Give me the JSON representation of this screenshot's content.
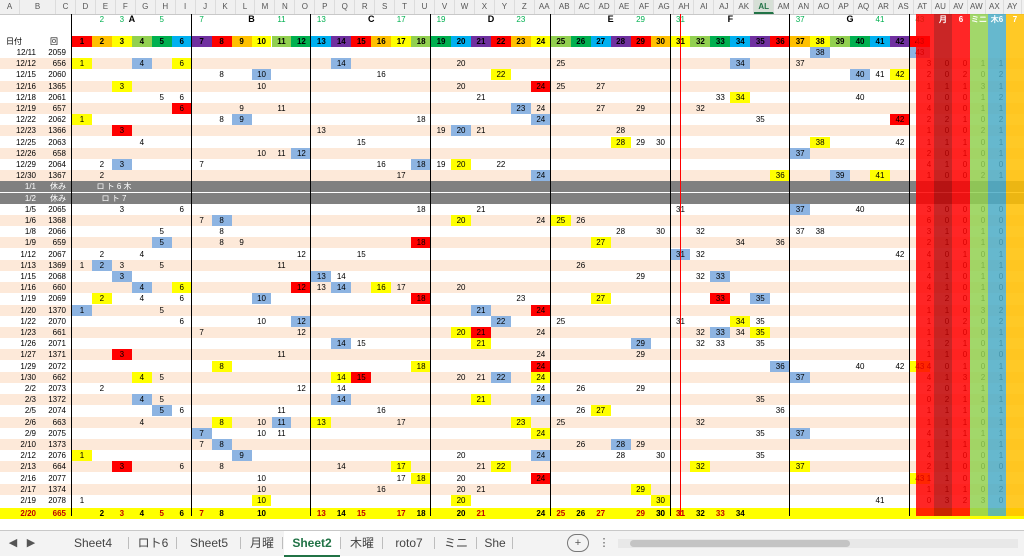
{
  "columns": [
    "A",
    "B",
    "C",
    "D",
    "E",
    "F",
    "G",
    "H",
    "I",
    "J",
    "K",
    "L",
    "M",
    "N",
    "O",
    "P",
    "Q",
    "R",
    "S",
    "T",
    "U",
    "V",
    "W",
    "X",
    "Y",
    "Z",
    "AA",
    "AB",
    "AC",
    "AD",
    "AE",
    "AF",
    "AG",
    "AH",
    "AI",
    "AJ",
    "AK",
    "AL",
    "AM",
    "AN",
    "AO",
    "AP",
    "AQ",
    "AR",
    "AS",
    "AT",
    "AU",
    "AV",
    "AW",
    "AX",
    "AY"
  ],
  "selected_column": "AL",
  "groups": [
    "A",
    "B",
    "C",
    "D",
    "E",
    "F",
    "G"
  ],
  "header": {
    "date_label": "日付",
    "round_label": "回",
    "nums": [
      "1",
      "2",
      "3",
      "4",
      "5",
      "6",
      "7",
      "8",
      "9",
      "10",
      "11",
      "12",
      "13",
      "14",
      "15",
      "16",
      "17",
      "18",
      "19",
      "20",
      "21",
      "22",
      "23",
      "24",
      "25",
      "26",
      "27",
      "28",
      "29",
      "30",
      "31",
      "32",
      "33",
      "34",
      "35",
      "36",
      "37",
      "38",
      "39",
      "40",
      "41",
      "42",
      "43"
    ],
    "upper": {
      "2": "2",
      "3": "3",
      "5": "5",
      "7": "7",
      "11": "11",
      "13": "13",
      "17": "17",
      "19": "19",
      "23": "23",
      "29": "29",
      "31": "31",
      "37": "37",
      "41": "41",
      "43": "43"
    },
    "side_labels": [
      "月",
      "6",
      "ミニ",
      "木6",
      "7"
    ]
  },
  "rows": [
    {
      "d": "12/11",
      "n": "2059",
      "v": {
        "38": "38",
        "43": "43"
      }
    },
    {
      "d": "12/12",
      "n": "656",
      "v": {
        "1": "1",
        "4": "4",
        "6": "6",
        "14": "14",
        "20": "20",
        "25": "25",
        "34": "34",
        "37": "37"
      },
      "s": [
        "3",
        "0",
        "0",
        "1",
        "1"
      ]
    },
    {
      "d": "12/15",
      "n": "2060",
      "v": {
        "8": "8",
        "10": "10",
        "16": "16",
        "22": "22",
        "40": "40",
        "41": "41",
        "42": "42"
      },
      "s": [
        "2",
        "0",
        "2",
        "0",
        "2"
      ]
    },
    {
      "d": "12/16",
      "n": "1365",
      "v": {
        "3": "3",
        "10": "10",
        "20": "20",
        "24": "24",
        "25": "25",
        "27": "27"
      },
      "s": [
        "1",
        "1",
        "1",
        "3",
        "1"
      ]
    },
    {
      "d": "12/18",
      "n": "2061",
      "v": {
        "5": "5",
        "6": "6",
        "21": "21",
        "33": "33",
        "34": "34",
        "40": "40"
      },
      "s": [
        "0",
        "0",
        "0",
        "1",
        "2"
      ]
    },
    {
      "d": "12/19",
      "n": "657",
      "v": {
        "6": "6",
        "9": "9",
        "11": "11",
        "23": "23",
        "24": "24",
        "27": "27",
        "29": "29",
        "32": "32"
      },
      "s": [
        "4",
        "0",
        "0",
        "1",
        "1"
      ]
    },
    {
      "d": "12/22",
      "n": "2062",
      "v": {
        "1": "1",
        "8": "8",
        "9": "9",
        "18": "18",
        "24": "24",
        "35": "35",
        "42": "42"
      },
      "s": [
        "2",
        "2",
        "1",
        "0",
        "2"
      ]
    },
    {
      "d": "12/23",
      "n": "1366",
      "v": {
        "3": "3",
        "13": "13",
        "19": "19",
        "20": "20",
        "21": "21",
        "28": "28"
      },
      "s": [
        "1",
        "0",
        "0",
        "2",
        "1"
      ]
    },
    {
      "d": "12/25",
      "n": "2063",
      "v": {
        "4": "4",
        "15": "15",
        "28": "28",
        "29": "29",
        "30": "30",
        "38": "38",
        "42": "42"
      },
      "s": [
        "1",
        "1",
        "1",
        "0",
        "1"
      ]
    },
    {
      "d": "12/26",
      "n": "658",
      "v": {
        "10": "10",
        "11": "11",
        "12": "12",
        "37": "37"
      },
      "s": [
        "2",
        "0",
        "1",
        "0",
        "1"
      ]
    },
    {
      "d": "12/29",
      "n": "2064",
      "v": {
        "2": "2",
        "3": "3",
        "7": "7",
        "16": "16",
        "18": "18",
        "19": "19",
        "20": "20",
        "22": "22"
      },
      "s": [
        "4",
        "1",
        "0",
        "0",
        "0"
      ]
    },
    {
      "d": "12/30",
      "n": "1367",
      "v": {
        "2": "2",
        "17": "17",
        "24": "24",
        "36": "36",
        "39": "39",
        "41": "41"
      },
      "s": [
        "1",
        "0",
        "0",
        "2",
        "1"
      ]
    },
    {
      "d": "1/1",
      "n": "休み",
      "note": "ロ ト 6 木",
      "gray": true
    },
    {
      "d": "1/2",
      "n": "休み",
      "note": "ロ ト 7",
      "gray": true
    },
    {
      "d": "1/5",
      "n": "2065",
      "v": {
        "3": "3",
        "6": "6",
        "18": "18",
        "21": "21",
        "31": "31",
        "37": "37",
        "40": "40"
      },
      "s": [
        "3",
        "0",
        "0",
        "0",
        "0"
      ]
    },
    {
      "d": "1/6",
      "n": "1368",
      "v": {
        "7": "7",
        "8": "8",
        "20": "20",
        "24": "24",
        "25": "25",
        "26": "26"
      },
      "s": [
        "6",
        "0",
        "0",
        "0",
        "0"
      ]
    },
    {
      "d": "1/8",
      "n": "2066",
      "v": {
        "5": "5",
        "8": "8",
        "28": "28",
        "30": "30",
        "32": "32",
        "37": "37",
        "38": "38"
      },
      "s": [
        "3",
        "1",
        "0",
        "1",
        "0"
      ]
    },
    {
      "d": "1/9",
      "n": "659",
      "v": {
        "5": "5",
        "8": "8",
        "9": "9",
        "18": "18",
        "27": "27",
        "34": "34",
        "36": "36"
      },
      "s": [
        "2",
        "1",
        "0",
        "1",
        "0"
      ]
    },
    {
      "d": "1/12",
      "n": "2067",
      "v": {
        "2": "2",
        "4": "4",
        "12": "12",
        "15": "15",
        "31": "31",
        "32": "32",
        "42": "42"
      },
      "s": [
        "4",
        "0",
        "1",
        "0",
        "1"
      ]
    },
    {
      "d": "1/13",
      "n": "1369",
      "v": {
        "1": "1",
        "2": "2",
        "3": "3",
        "5": "5",
        "11": "11",
        "26": "26"
      },
      "s": [
        "1",
        "1",
        "0",
        "1",
        "1"
      ]
    },
    {
      "d": "1/15",
      "n": "2068",
      "v": {
        "3": "3",
        "13": "13",
        "14": "14",
        "29": "29",
        "32": "32",
        "33": "33"
      },
      "s": [
        "4",
        "1",
        "0",
        "1",
        "0"
      ]
    },
    {
      "d": "1/16",
      "n": "660",
      "v": {
        "4": "4",
        "6": "6",
        "12": "12",
        "13": "13",
        "14": "14",
        "16": "16",
        "17": "17",
        "20": "20"
      },
      "s": [
        "4",
        "1",
        "0",
        "1",
        "0"
      ]
    },
    {
      "d": "1/19",
      "n": "2069",
      "v": {
        "4": "4",
        "2": "2",
        "6": "6",
        "10": "10",
        "18": "18",
        "23": "23",
        "27": "27",
        "33": "33",
        "35": "35"
      },
      "s": [
        "2",
        "2",
        "0",
        "1",
        "0"
      ]
    },
    {
      "d": "1/20",
      "n": "1370",
      "v": {
        "1": "1",
        "5": "5",
        "21": "21",
        "24": "24"
      },
      "s": [
        "1",
        "1",
        "0",
        "3",
        "2"
      ]
    },
    {
      "d": "1/22",
      "n": "2070",
      "v": {
        "6": "6",
        "10": "10",
        "12": "12",
        "22": "22",
        "25": "25",
        "31": "31",
        "34": "34",
        "35": "35"
      },
      "s": [
        "1",
        "0",
        "2",
        "0",
        "2"
      ]
    },
    {
      "d": "1/23",
      "n": "661",
      "v": {
        "7": "7",
        "12": "12",
        "20": "20",
        "21": "21",
        "24": "24",
        "32": "32",
        "33": "33",
        "34": "34",
        "35": "35"
      },
      "s": [
        "1",
        "1",
        "0",
        "0",
        "1"
      ]
    },
    {
      "d": "1/26",
      "n": "2071",
      "v": {
        "14": "14",
        "15": "15",
        "21": "21",
        "29": "29",
        "32": "32",
        "33": "33",
        "35": "35"
      },
      "s": [
        "1",
        "2",
        "1",
        "0",
        "1"
      ]
    },
    {
      "d": "1/27",
      "n": "1371",
      "v": {
        "3": "3",
        "11": "11",
        "24": "24",
        "29": "29"
      },
      "s": [
        "1",
        "1",
        "0",
        "0",
        "0"
      ]
    },
    {
      "d": "1/29",
      "n": "2072",
      "v": {
        "8": "8",
        "18": "18",
        "24": "24",
        "36": "36",
        "40": "40",
        "42": "42",
        "43": "43"
      },
      "s": [
        "4",
        "0",
        "1",
        "0",
        "1"
      ]
    },
    {
      "d": "1/30",
      "n": "662",
      "v": {
        "4": "4",
        "5": "5",
        "14": "14",
        "15": "15",
        "20": "20",
        "21": "21",
        "22": "22",
        "24": "24",
        "37": "37"
      },
      "s": [
        "4",
        "1",
        "3",
        "2",
        "1"
      ]
    },
    {
      "d": "2/2",
      "n": "2073",
      "v": {
        "2": "2",
        "12": "12",
        "14": "14",
        "24": "24",
        "26": "26",
        "29": "29"
      },
      "s": [
        "2",
        "0",
        "1",
        "1",
        "1"
      ]
    },
    {
      "d": "2/3",
      "n": "1372",
      "v": {
        "4": "4",
        "5": "5",
        "14": "14",
        "21": "21",
        "24": "24",
        "35": "35"
      },
      "s": [
        "0",
        "2",
        "1",
        "1",
        "1"
      ]
    },
    {
      "d": "2/5",
      "n": "2074",
      "v": {
        "5": "5",
        "6": "6",
        "11": "11",
        "16": "16",
        "26": "26",
        "27": "27",
        "36": "36"
      },
      "s": [
        "1",
        "1",
        "1",
        "0",
        "1"
      ]
    },
    {
      "d": "2/6",
      "n": "663",
      "v": {
        "4": "4",
        "8": "8",
        "10": "10",
        "11": "11",
        "13": "13",
        "17": "17",
        "23": "23",
        "25": "25",
        "32": "32"
      },
      "s": [
        "1",
        "1",
        "1",
        "0",
        "1"
      ]
    },
    {
      "d": "2/9",
      "n": "2075",
      "v": {
        "7": "7",
        "10": "10",
        "11": "11",
        "24": "24",
        "35": "35",
        "37": "37"
      },
      "s": [
        "4",
        "1",
        "1",
        "1",
        "1"
      ]
    },
    {
      "d": "2/10",
      "n": "1373",
      "v": {
        "7": "7",
        "8": "8",
        "26": "26",
        "28": "28",
        "29": "29"
      },
      "s": [
        "1",
        "1",
        "1",
        "0",
        "1"
      ]
    },
    {
      "d": "2/12",
      "n": "2076",
      "v": {
        "1": "1",
        "9": "9",
        "20": "20",
        "24": "24",
        "28": "28",
        "30": "30",
        "35": "35"
      },
      "s": [
        "4",
        "1",
        "0",
        "0",
        "1"
      ]
    },
    {
      "d": "2/13",
      "n": "664",
      "v": {
        "3": "3",
        "6": "6",
        "8": "8",
        "14": "14",
        "17": "17",
        "21": "21",
        "22": "22",
        "32": "32",
        "37": "37"
      },
      "s": [
        "2",
        "1",
        "0",
        "0",
        "0"
      ]
    },
    {
      "d": "2/16",
      "n": "2077",
      "v": {
        "10": "10",
        "17": "17",
        "18": "18",
        "20": "20",
        "24": "24",
        "43": "43"
      },
      "s": [
        "1",
        "1",
        "0",
        "0",
        "1"
      ]
    },
    {
      "d": "2/17",
      "n": "1374",
      "v": {
        "10": "10",
        "16": "16",
        "20": "20",
        "21": "21",
        "29": "29"
      },
      "s": [
        "1",
        "1",
        "1",
        "0",
        "2"
      ]
    },
    {
      "d": "2/19",
      "n": "2078",
      "v": {
        "1": "1",
        "10": "10",
        "20": "20",
        "30": "30",
        "41": "41"
      },
      "s": [
        "0",
        "3",
        "2",
        "3",
        "0"
      ]
    }
  ],
  "totals": {
    "d": "2/20",
    "n": "665",
    "v": {
      "2": "2",
      "3": "3",
      "4": "4",
      "5": "5",
      "6": "6",
      "7": "7",
      "8": "8",
      "10": "10",
      "13": "13",
      "14": "14",
      "15": "15",
      "17": "17",
      "18": "18",
      "20": "20",
      "21": "21",
      "24": "24",
      "25": "25",
      "26": "26",
      "27": "27",
      "29": "29",
      "30": "30",
      "31": "31",
      "32": "32",
      "33": "33",
      "34": "34",
      "30b": "30",
      "31b": "31"
    }
  },
  "tabs": [
    "Sheet4",
    "ロト6",
    "Sheet5",
    "月曜",
    "Sheet2",
    "木曜",
    "roto7",
    "ミニ",
    "She"
  ],
  "active_tab": "Sheet2",
  "nav": {
    "prev": "◀",
    "next": "▶",
    "add": "+",
    "more": "⋮"
  },
  "colors": {
    "green": "#00b050",
    "yellow": "#ffff00",
    "red": "#ff0000",
    "blue": "#8db4e2",
    "orange": "#ffc000",
    "gray": "#808080",
    "header_bg": "#f0f0f0",
    "accent": "#217346"
  }
}
